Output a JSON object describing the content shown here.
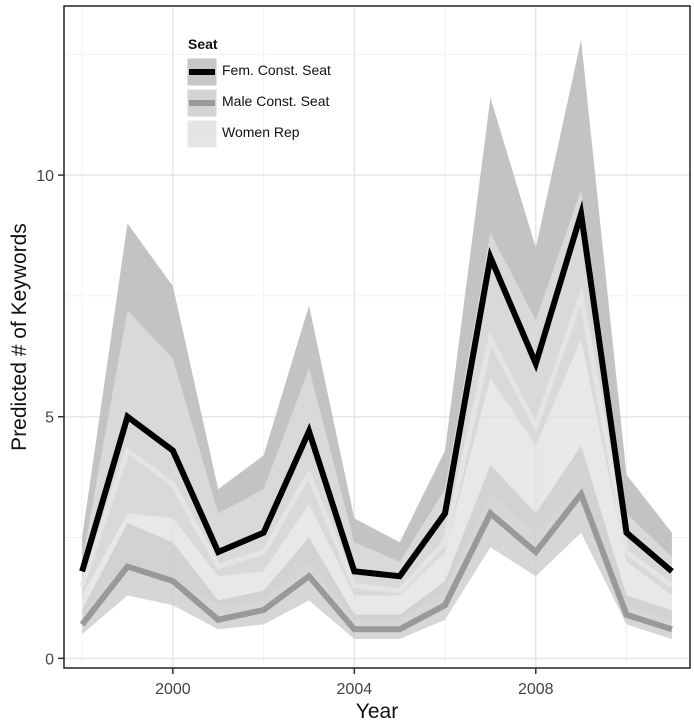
{
  "chart_data": {
    "type": "line",
    "xlabel": "Year",
    "ylabel": "Predicted # of Keywords",
    "xlim": [
      1997.6,
      2011.4
    ],
    "ylim": [
      -0.2,
      13.5
    ],
    "x_ticks": [
      2000,
      2004,
      2008
    ],
    "x_tick_labels": [
      "2000",
      "2004",
      "2008"
    ],
    "y_ticks": [
      0,
      5,
      10
    ],
    "y_tick_labels": [
      "0",
      "5",
      "10"
    ],
    "grid": true,
    "legend": {
      "title": "Seat",
      "placement": "top-left",
      "entries": [
        "Fem. Const. Seat",
        "Male Const. Seat",
        "Women Rep"
      ]
    },
    "x": [
      1998,
      1999,
      2000,
      2001,
      2002,
      2003,
      2004,
      2005,
      2006,
      2007,
      2008,
      2009,
      2010,
      2011
    ],
    "series": [
      {
        "name": "Fem. Const. Seat",
        "color": "#000000",
        "band_color": "#bdbdbd",
        "values": [
          1.8,
          5.0,
          4.3,
          2.2,
          2.6,
          4.7,
          1.8,
          1.7,
          3.0,
          8.3,
          6.1,
          9.2,
          2.6,
          1.8
        ],
        "lower": [
          1.3,
          3.0,
          2.9,
          1.7,
          1.8,
          3.2,
          1.3,
          1.3,
          2.2,
          5.8,
          4.4,
          6.6,
          2.0,
          1.3
        ],
        "upper": [
          2.5,
          9.0,
          7.7,
          3.5,
          4.2,
          7.3,
          2.9,
          2.4,
          4.3,
          11.6,
          8.5,
          12.8,
          3.8,
          2.6
        ]
      },
      {
        "name": "Women Rep",
        "color": "#e4e4e4",
        "band_color": "#e0e0e0",
        "values": [
          1.5,
          4.3,
          3.6,
          1.9,
          2.2,
          3.8,
          1.5,
          1.4,
          2.4,
          6.6,
          4.8,
          7.5,
          2.2,
          1.5
        ],
        "lower": [
          0.9,
          2.0,
          1.6,
          1.1,
          1.2,
          2.0,
          0.8,
          0.8,
          1.4,
          3.4,
          2.6,
          3.6,
          1.1,
          0.8
        ],
        "upper": [
          2.0,
          7.2,
          6.2,
          3.0,
          3.5,
          6.0,
          2.4,
          2.0,
          3.5,
          8.8,
          7.0,
          9.7,
          3.0,
          2.1
        ]
      },
      {
        "name": "Male Const. Seat",
        "color": "#999999",
        "band_color": "#cccccc",
        "values": [
          0.7,
          1.9,
          1.6,
          0.8,
          1.0,
          1.7,
          0.6,
          0.6,
          1.1,
          3.0,
          2.2,
          3.4,
          0.9,
          0.6
        ],
        "lower": [
          0.5,
          1.3,
          1.1,
          0.6,
          0.7,
          1.2,
          0.4,
          0.4,
          0.8,
          2.3,
          1.7,
          2.6,
          0.7,
          0.4
        ],
        "upper": [
          1.0,
          2.8,
          2.4,
          1.2,
          1.4,
          2.5,
          0.9,
          0.9,
          1.6,
          4.0,
          3.0,
          4.4,
          1.3,
          1.0
        ]
      }
    ]
  }
}
